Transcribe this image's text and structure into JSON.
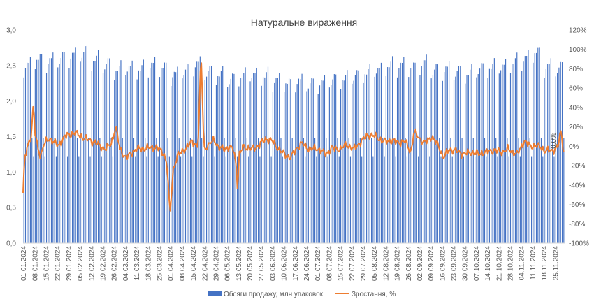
{
  "chart_data": {
    "type": "bar+line",
    "title": "Натуральне вираження",
    "y_left": {
      "ylim": [
        0,
        3
      ],
      "ticks": [
        "0,0",
        "0,5",
        "1,0",
        "1,5",
        "2,0",
        "2,5",
        "3,0"
      ]
    },
    "y_right": {
      "ylim": [
        -100,
        120
      ],
      "ticks": [
        "-100%",
        "-80%",
        "-60%",
        "-40%",
        "-20%",
        "0%",
        "20%",
        "40%",
        "60%",
        "80%",
        "100%",
        "120%"
      ]
    },
    "x_tick_labels": [
      "01.01.2024",
      "08.01.2024",
      "15.01.2024",
      "22.01.2024",
      "29.01.2024",
      "05.02.2024",
      "12.02.2024",
      "19.02.2024",
      "26.02.2024",
      "04.03.2024",
      "11.03.2024",
      "18.03.2024",
      "25.03.2024",
      "01.04.2024",
      "08.04.2024",
      "15.04.2024",
      "22.04.2024",
      "29.04.2024",
      "06.05.2024",
      "13.05.2024",
      "20.05.2024",
      "27.05.2024",
      "03.06.2024",
      "10.06.2024",
      "17.06.2024",
      "24.06.2024",
      "01.07.2024",
      "08.07.2024",
      "15.07.2024",
      "22.07.2024",
      "29.07.2024",
      "05.08.2024",
      "12.08.2024",
      "19.08.2024",
      "26.08.2024",
      "02.09.2024",
      "09.09.2024",
      "16.09.2024",
      "23.09.2024",
      "30.09.2024",
      "07.10.2024",
      "14.10.2024",
      "21.10.2024",
      "28.10.2024",
      "04.11.2024",
      "11.11.2024",
      "18.11.2024",
      "25.11.2024"
    ],
    "days": 335,
    "weekly_bar_pattern": [
      2.4,
      2.5,
      2.55,
      2.6,
      2.65,
      1.45,
      1.2
    ],
    "weekly_peaks": [
      2.62,
      2.7,
      2.68,
      2.72,
      2.75,
      2.8,
      2.7,
      2.62,
      2.55,
      2.58,
      2.55,
      2.62,
      2.58,
      2.48,
      2.55,
      2.62,
      2.52,
      2.48,
      2.4,
      2.45,
      2.48,
      2.45,
      2.4,
      2.35,
      2.38,
      2.35,
      2.35,
      2.4,
      2.42,
      2.45,
      2.5,
      2.55,
      2.6,
      2.62,
      2.58,
      2.65,
      2.55,
      2.55,
      2.52,
      2.5,
      2.55,
      2.58,
      2.6,
      2.65,
      2.72,
      2.8,
      2.6,
      2.58
    ],
    "growth_keyframes": [
      [
        0,
        -48
      ],
      [
        1,
        -15
      ],
      [
        3,
        0
      ],
      [
        5,
        8
      ],
      [
        6,
        20
      ],
      [
        7,
        45
      ],
      [
        8,
        15
      ],
      [
        10,
        -2
      ],
      [
        12,
        -10
      ],
      [
        14,
        2
      ],
      [
        18,
        8
      ],
      [
        21,
        5
      ],
      [
        24,
        0
      ],
      [
        28,
        10
      ],
      [
        35,
        14
      ],
      [
        42,
        8
      ],
      [
        49,
        4
      ],
      [
        56,
        -3
      ],
      [
        60,
        3
      ],
      [
        63,
        20
      ],
      [
        66,
        -3
      ],
      [
        70,
        -12
      ],
      [
        77,
        -3
      ],
      [
        84,
        -2
      ],
      [
        91,
        -1
      ],
      [
        96,
        -8
      ],
      [
        98,
        -20
      ],
      [
        100,
        -72
      ],
      [
        102,
        -25
      ],
      [
        105,
        -10
      ],
      [
        110,
        -3
      ],
      [
        115,
        5
      ],
      [
        119,
        0
      ],
      [
        120,
        40
      ],
      [
        121,
        97
      ],
      [
        122,
        55
      ],
      [
        123,
        -2
      ],
      [
        126,
        0
      ],
      [
        130,
        8
      ],
      [
        133,
        -2
      ],
      [
        140,
        -2
      ],
      [
        143,
        -2
      ],
      [
        145,
        -18
      ],
      [
        146,
        -45
      ],
      [
        147,
        -10
      ],
      [
        150,
        0
      ],
      [
        155,
        -3
      ],
      [
        160,
        0
      ],
      [
        165,
        8
      ],
      [
        170,
        5
      ],
      [
        175,
        -5
      ],
      [
        182,
        -12
      ],
      [
        186,
        -2
      ],
      [
        190,
        3
      ],
      [
        195,
        -3
      ],
      [
        200,
        -2
      ],
      [
        206,
        -8
      ],
      [
        210,
        -2
      ],
      [
        216,
        -3
      ],
      [
        220,
        2
      ],
      [
        225,
        -3
      ],
      [
        230,
        5
      ],
      [
        235,
        12
      ],
      [
        240,
        10
      ],
      [
        245,
        5
      ],
      [
        250,
        6
      ],
      [
        255,
        4
      ],
      [
        260,
        5
      ],
      [
        264,
        -6
      ],
      [
        266,
        15
      ],
      [
        270,
        8
      ],
      [
        273,
        3
      ],
      [
        278,
        10
      ],
      [
        283,
        0
      ],
      [
        286,
        -12
      ],
      [
        290,
        -3
      ],
      [
        295,
        -5
      ],
      [
        300,
        -8
      ],
      [
        305,
        -6
      ],
      [
        310,
        -8
      ],
      [
        315,
        -6
      ],
      [
        320,
        -4
      ],
      [
        326,
        -6
      ],
      [
        330,
        -3
      ],
      [
        336,
        -8
      ],
      [
        338,
        -4
      ],
      [
        341,
        6
      ],
      [
        345,
        0
      ],
      [
        350,
        1
      ],
      [
        355,
        -4
      ],
      [
        360,
        -5
      ],
      [
        364,
        0
      ],
      [
        366,
        15
      ],
      [
        368,
        -5
      ]
    ],
    "growth_last_label": "0,0%",
    "series": [
      {
        "name": "Обсяги продажу, млн упаковок",
        "axis": "left",
        "kind": "bar",
        "color": "#4472C4"
      },
      {
        "name": "Зростання, %",
        "axis": "right",
        "kind": "line",
        "color": "#ED7D31"
      }
    ],
    "legend_position": "bottom",
    "grid": false
  }
}
